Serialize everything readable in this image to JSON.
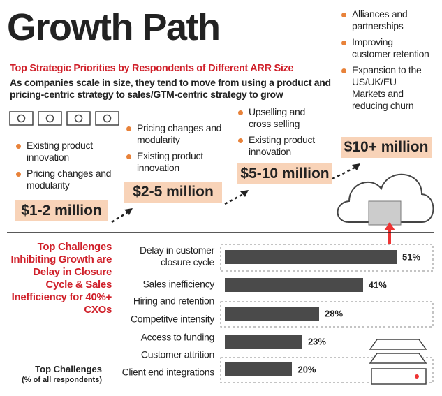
{
  "header": {
    "title": "Growth Path",
    "subtitle": "Top Strategic Priorities by Respondents of Different ARR Size",
    "description": "As companies scale in size, they tend to move from using a product and pricing-centric strategy to sales/GTM-centric strategy to grow"
  },
  "stages": [
    {
      "amount": "$1-2 million",
      "items": [
        "Existing product innovation",
        "Pricing changes and modularity"
      ]
    },
    {
      "amount": "$2-5 million",
      "items": [
        "Pricing changes and modularity",
        "Existing product innovation"
      ]
    },
    {
      "amount": "$5-10 million",
      "items": [
        "Upselling and cross selling",
        "Existing product innovation"
      ]
    },
    {
      "amount": "$10+ million",
      "items": [
        "Alliances and partnerships",
        "Improving customer retention",
        "Expansion to the US/UK/EU Markets and reducing churn"
      ]
    }
  ],
  "chart_data": {
    "type": "bar",
    "title": "Top Challenges",
    "subtitle": "(% of all respondents)",
    "annotation": "Top Challenges Inhibiting Growth are Delay in Closure Cycle & Sales Inefficiency for 40%+ CXOs",
    "categories": [
      "Delay in customer closure cycle",
      "Sales inefficiency",
      "Hiring and retention",
      "Competitve intensity",
      "Access to funding",
      "Customer attrition",
      "Client end integrations"
    ],
    "values": [
      51,
      41,
      null,
      28,
      23,
      null,
      20
    ],
    "value_labels": [
      "51%",
      "41%",
      null,
      "28%",
      "23%",
      null,
      "20%"
    ],
    "color": "#4a4a4a"
  }
}
